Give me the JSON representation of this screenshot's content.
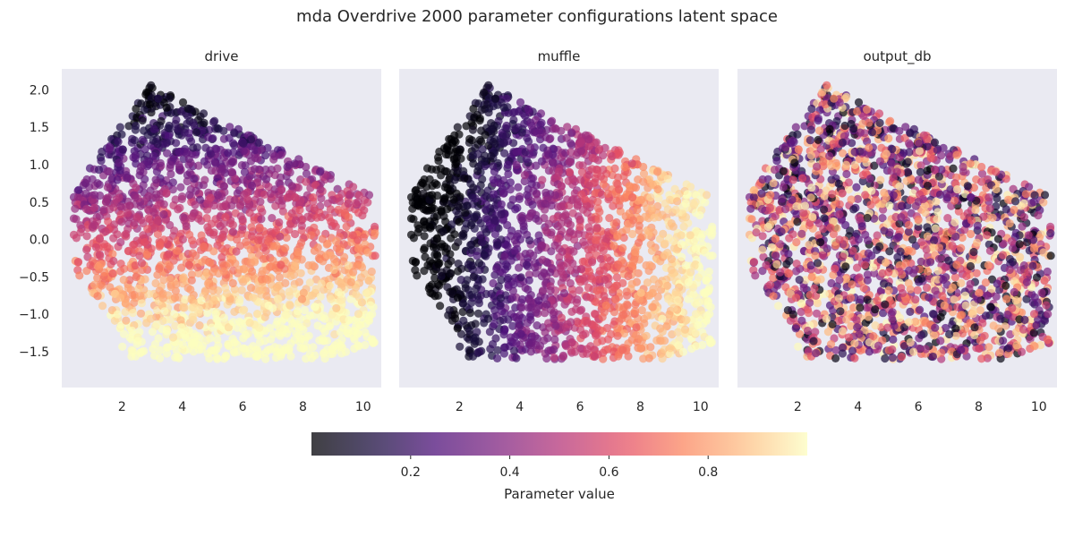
{
  "figure": {
    "title": "mda Overdrive 2000 parameter configurations latent space",
    "background": "#ffffff",
    "panel_background": "#eaeaf2"
  },
  "chart_data": {
    "type": "scatter",
    "panels": [
      {
        "title": "drive",
        "color_trend": "increases toward lower-right; darkest at top"
      },
      {
        "title": "muffle",
        "color_trend": "increases from left to right"
      },
      {
        "title": "output_db",
        "color_trend": "random, no clear trend"
      }
    ],
    "x_ticks": [
      2,
      4,
      6,
      8,
      10
    ],
    "y_ticks": [
      2.0,
      1.5,
      1.0,
      0.5,
      0.0,
      -0.5,
      -1.0,
      -1.5
    ],
    "y_tick_labels": [
      "2.0",
      "1.5",
      "1.0",
      "0.5",
      "0.0",
      "−0.5",
      "−1.0",
      "−1.5"
    ],
    "xlim": [
      0.0,
      10.6
    ],
    "ylim": [
      -1.98,
      2.28
    ],
    "point_count_per_panel": 2000,
    "colormap": "magma",
    "alpha": 0.7,
    "grid": false,
    "colorbar": {
      "label": "Parameter value",
      "ticks": [
        0.2,
        0.4,
        0.6,
        0.8
      ],
      "tick_labels": [
        "0.2",
        "0.4",
        "0.6",
        "0.8"
      ],
      "range": [
        0.0,
        1.0
      ],
      "orientation": "horizontal",
      "placement": "bottom-center"
    }
  }
}
